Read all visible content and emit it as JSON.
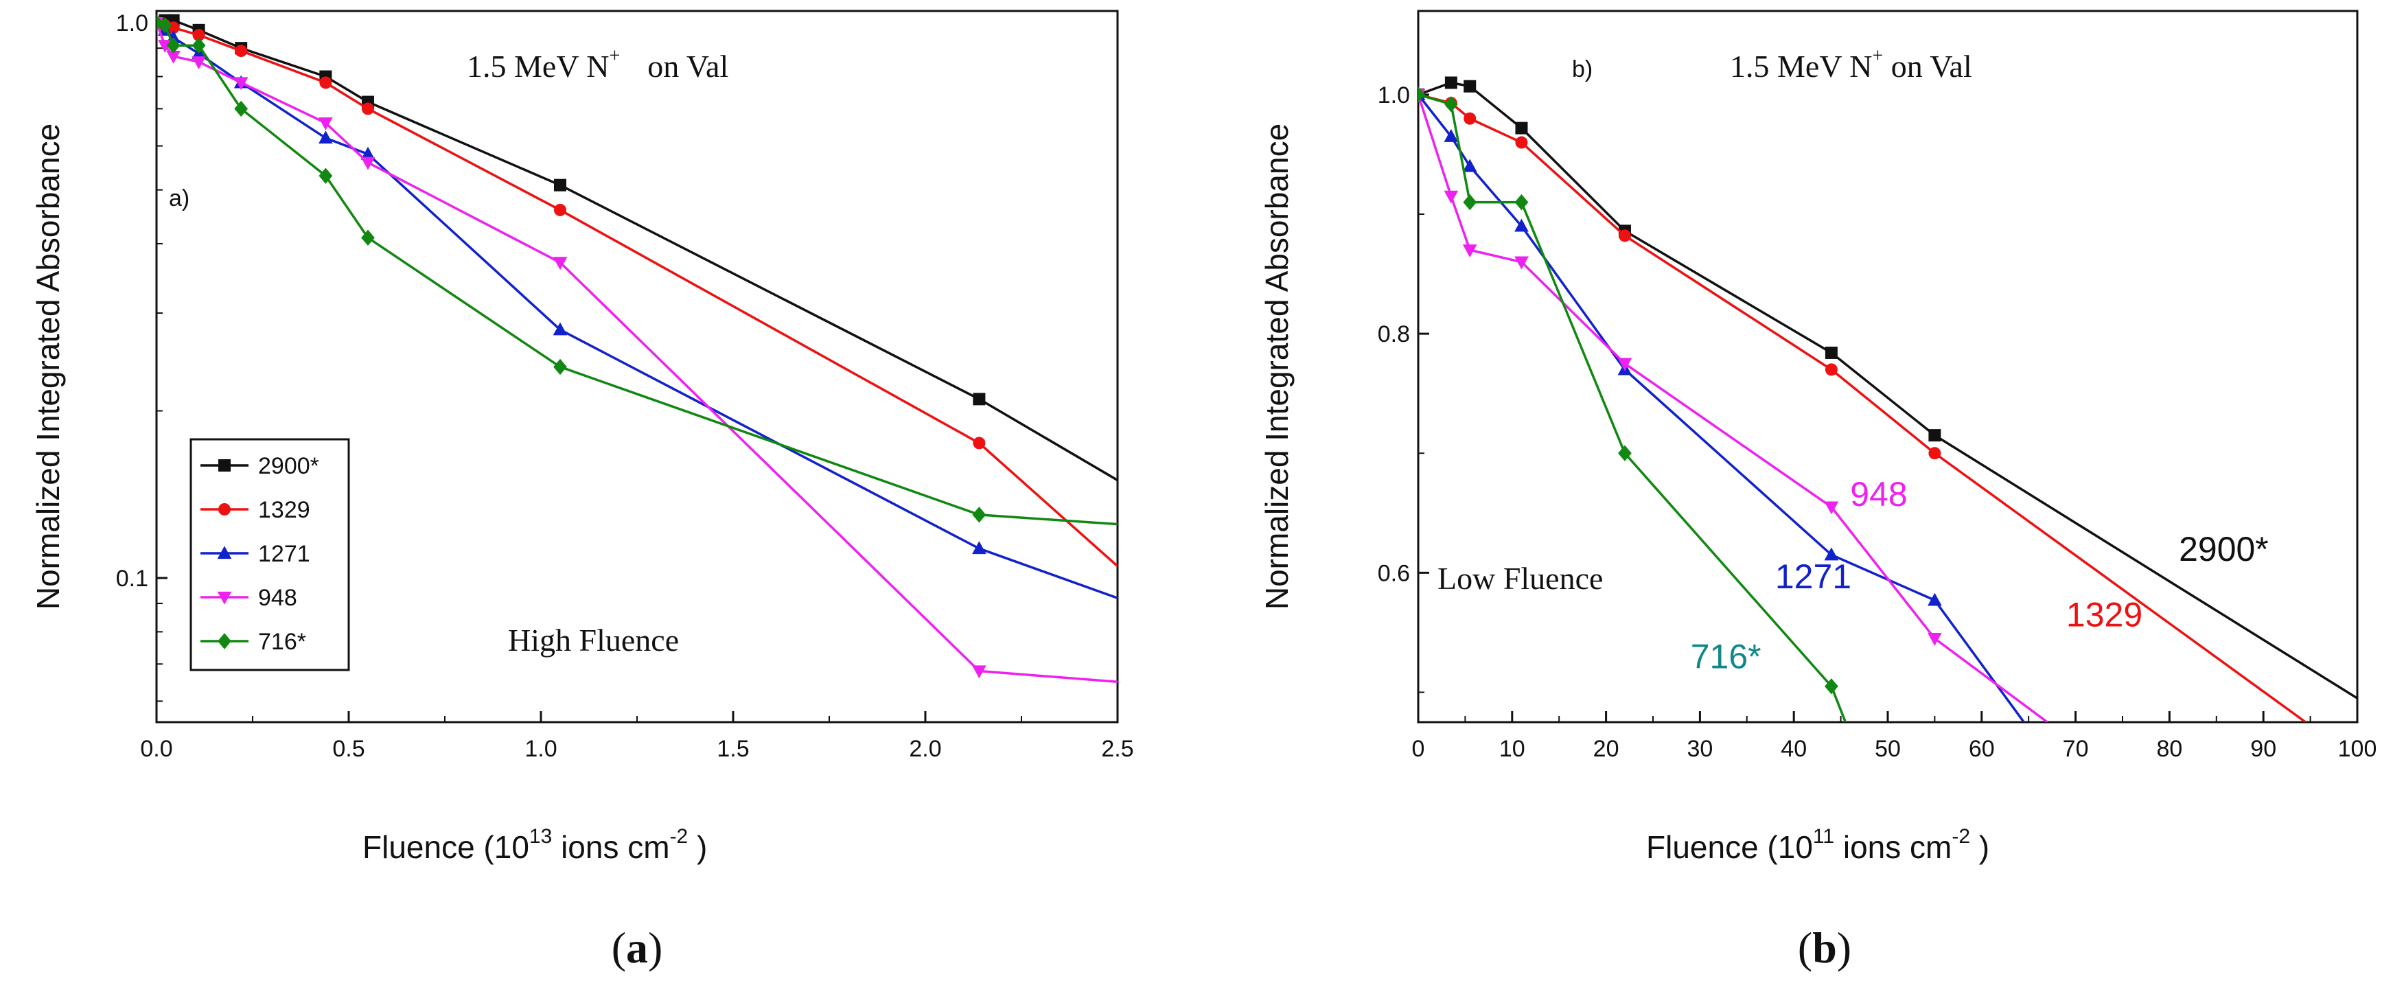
{
  "chart_data": [
    {
      "panel": "a",
      "type": "line",
      "yscale": "log",
      "title": "1.5 MeV  N+   on   Val",
      "title_parts": {
        "prefix": "1.5 MeV  N",
        "sup": "+",
        "suffix": "on    Val"
      },
      "panel_tag": "a)",
      "caption": {
        "open": "(",
        "letter": "a",
        "close": ")"
      },
      "annotation": "High Fluence",
      "xlabel": {
        "prefix": "Fluence  (10",
        "sup1": "13",
        "mid": "  ions cm",
        "sup2": "-2",
        "suffix": " )"
      },
      "ylabel": "Normalized Integrated Absorbance",
      "xlim": [
        0.0,
        2.5
      ],
      "ylim": [
        0.055,
        1.05
      ],
      "x_ticks": [
        0.0,
        0.5,
        1.0,
        1.5,
        2.0,
        2.5
      ],
      "x_tick_labels": [
        "0.0",
        "0.5",
        "1.0",
        "1.5",
        "2.0",
        "2.5"
      ],
      "y_ticks": [
        0.1,
        1.0
      ],
      "y_tick_labels": [
        "0.1",
        "1.0"
      ],
      "legend": {
        "placement": "lower-left",
        "entries": [
          "2900*",
          "1329",
          "1271",
          "948",
          "716*"
        ]
      },
      "series": [
        {
          "name": "2900*",
          "color": "#111111",
          "marker": "square",
          "x": [
            0,
            0.022,
            0.044,
            0.11,
            0.22,
            0.44,
            0.55,
            1.05,
            2.14,
            2.5
          ],
          "y": [
            1.0,
            1.01,
            1.01,
            0.97,
            0.9,
            0.8,
            0.72,
            0.51,
            0.21,
            0.15
          ]
        },
        {
          "name": "1329",
          "color": "#ee1111",
          "marker": "circle",
          "x": [
            0,
            0.022,
            0.044,
            0.11,
            0.22,
            0.44,
            0.55,
            1.05,
            2.14,
            2.5
          ],
          "y": [
            1.0,
            0.99,
            0.98,
            0.95,
            0.89,
            0.78,
            0.7,
            0.46,
            0.175,
            0.105
          ]
        },
        {
          "name": "1271",
          "color": "#1122cc",
          "marker": "triangle-up",
          "x": [
            0,
            0.022,
            0.044,
            0.11,
            0.22,
            0.44,
            0.55,
            1.05,
            2.14,
            2.5
          ],
          "y": [
            1.0,
            0.97,
            0.94,
            0.88,
            0.78,
            0.62,
            0.58,
            0.28,
            0.113,
            0.092
          ]
        },
        {
          "name": "948",
          "color": "#ee22ee",
          "marker": "triangle-down",
          "x": [
            0,
            0.022,
            0.044,
            0.11,
            0.22,
            0.44,
            0.55,
            1.05,
            2.14,
            2.5
          ],
          "y": [
            1.0,
            0.91,
            0.87,
            0.85,
            0.78,
            0.66,
            0.56,
            0.37,
            0.068,
            0.065
          ]
        },
        {
          "name": "716*",
          "color": "#118811",
          "marker": "diamond",
          "x": [
            0,
            0.022,
            0.044,
            0.11,
            0.22,
            0.44,
            0.55,
            1.05,
            2.14,
            2.5
          ],
          "y": [
            1.0,
            0.99,
            0.91,
            0.91,
            0.7,
            0.53,
            0.41,
            0.24,
            0.13,
            0.125
          ]
        }
      ]
    },
    {
      "panel": "b",
      "type": "line",
      "yscale": "linear",
      "title": "1.5 MeV  N+ on Val",
      "title_parts": {
        "prefix": "1.5 MeV  N",
        "sup": "+",
        "suffix": " on Val"
      },
      "panel_tag": "b)",
      "caption": {
        "open": "(",
        "letter": "b",
        "close": ")"
      },
      "annotation": "Low Fluence",
      "xlabel": {
        "prefix": "Fluence  (10",
        "sup1": "11",
        "mid": "   ions cm",
        "sup2": "-2",
        "suffix": " )"
      },
      "ylabel": "Normalized Integrated Absorbance",
      "xlim": [
        0,
        100
      ],
      "ylim": [
        0.475,
        1.07
      ],
      "x_ticks": [
        0,
        10,
        20,
        30,
        40,
        50,
        60,
        70,
        80,
        90,
        100
      ],
      "x_tick_labels": [
        "0",
        "10",
        "20",
        "30",
        "40",
        "50",
        "60",
        "70",
        "80",
        "90",
        "100"
      ],
      "y_ticks": [
        0.6,
        0.8,
        1.0
      ],
      "y_tick_labels": [
        "0.6",
        "0.8",
        "1.0"
      ],
      "series_labels": [
        {
          "text": "2900*",
          "color": "#111111",
          "x": 81,
          "y": 0.61
        },
        {
          "text": "1329",
          "color": "#ee1111",
          "x": 69,
          "y": 0.555
        },
        {
          "text": "1271",
          "color": "#1122cc",
          "x": 38,
          "y": 0.587
        },
        {
          "text": "948",
          "color": "#ee22ee",
          "x": 46,
          "y": 0.656
        },
        {
          "text": "716*",
          "color": "#118888",
          "x": 29,
          "y": 0.52
        }
      ],
      "series": [
        {
          "name": "2900*",
          "color": "#111111",
          "marker": "square",
          "x": [
            0,
            3.5,
            5.5,
            11,
            22,
            44,
            55,
            100
          ],
          "y": [
            1.0,
            1.01,
            1.007,
            0.972,
            0.886,
            0.784,
            0.715,
            0.495
          ]
        },
        {
          "name": "1329",
          "color": "#ee1111",
          "marker": "circle",
          "x": [
            0,
            3.5,
            5.5,
            11,
            22,
            44,
            55,
            94.5
          ],
          "y": [
            1.0,
            0.993,
            0.98,
            0.96,
            0.882,
            0.77,
            0.7,
            0.475
          ]
        },
        {
          "name": "1271",
          "color": "#1122cc",
          "marker": "triangle-up",
          "x": [
            0,
            3.5,
            5.5,
            11,
            22,
            44,
            55,
            64.5
          ],
          "y": [
            1.0,
            0.965,
            0.94,
            0.89,
            0.77,
            0.615,
            0.577,
            0.475
          ]
        },
        {
          "name": "948",
          "color": "#ee22ee",
          "marker": "triangle-down",
          "x": [
            0,
            3.5,
            5.5,
            11,
            22,
            44,
            55,
            67
          ],
          "y": [
            1.0,
            0.915,
            0.87,
            0.86,
            0.775,
            0.655,
            0.545,
            0.475
          ]
        },
        {
          "name": "716*",
          "color": "#118811",
          "marker": "diamond",
          "x": [
            0,
            3.5,
            5.5,
            11,
            22,
            44,
            45.5
          ],
          "y": [
            1.0,
            0.992,
            0.91,
            0.91,
            0.7,
            0.505,
            0.475
          ]
        }
      ]
    }
  ]
}
